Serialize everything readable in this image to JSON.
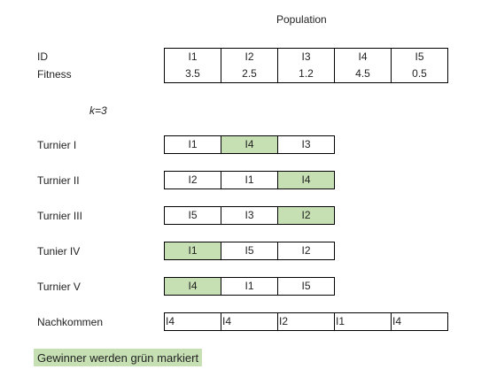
{
  "title": "Population",
  "population": {
    "id_label": "ID",
    "fitness_label": "Fitness",
    "ids": [
      "I1",
      "I2",
      "I3",
      "I4",
      "I5"
    ],
    "fitness": [
      "3.5",
      "2.5",
      "1.2",
      "4.5",
      "0.5"
    ]
  },
  "k_label": "k=3",
  "tournaments": [
    {
      "label": "Turnier I",
      "members": [
        "I1",
        "I4",
        "I3"
      ],
      "winner_index": 1
    },
    {
      "label": "Turnier II",
      "members": [
        "I2",
        "I1",
        "I4"
      ],
      "winner_index": 2
    },
    {
      "label": "Turnier III",
      "members": [
        "I5",
        "I3",
        "I2"
      ],
      "winner_index": 2
    },
    {
      "label": "Tunier IV",
      "members": [
        "I1",
        "I5",
        "I2"
      ],
      "winner_index": 0
    },
    {
      "label": "Turnier V",
      "members": [
        "I4",
        "I1",
        "I5"
      ],
      "winner_index": 0
    }
  ],
  "offspring": {
    "label": "Nachkommen",
    "values": [
      "I4",
      "I4",
      "I2",
      "I1",
      "I4"
    ]
  },
  "legend": "Gewinner werden grün markiert",
  "colors": {
    "winner": "#c6e0b4"
  }
}
